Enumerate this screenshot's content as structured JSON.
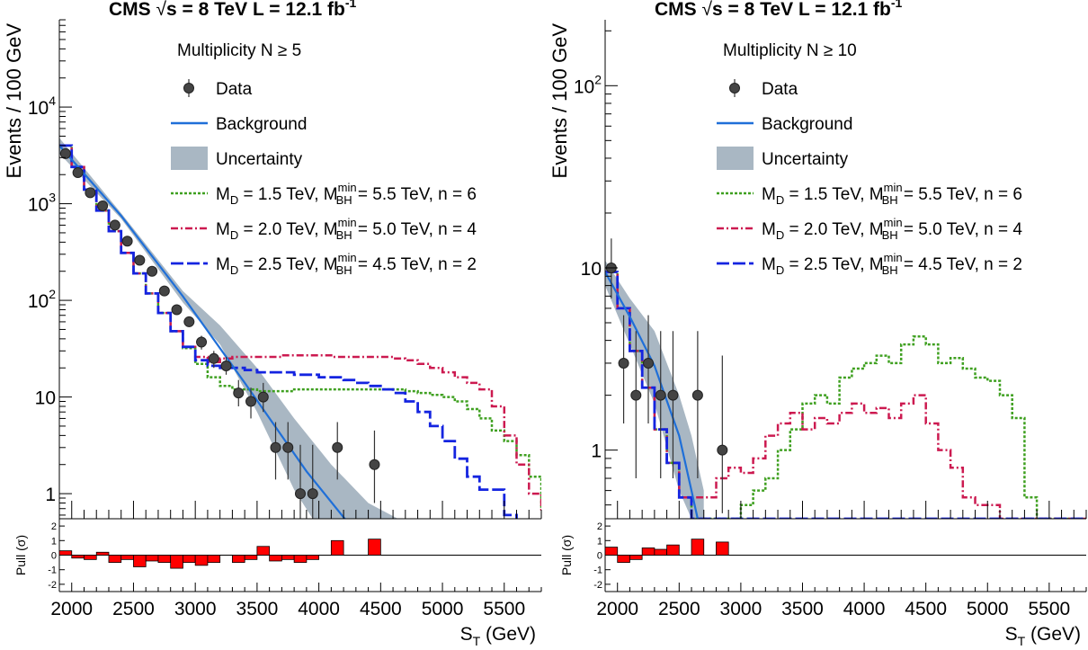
{
  "chart_data": [
    {
      "type": "line",
      "title": {
        "cms": "CMS",
        "energy": "s = 8 TeV",
        "sqrt": "√",
        "lumi_prefix": "L = 12.1 fb",
        "lumi_exp": "-1"
      },
      "multiplicity": "Multiplicity N ≥ 5",
      "xlabel": {
        "main": "S",
        "sub": "T",
        "unit": " (GeV)"
      },
      "ylabel": "Events / 100 GeV",
      "pull_label": "Pull (σ)",
      "log_y": true,
      "xlim": [
        1900,
        5800
      ],
      "ylim": [
        0.55,
        80000
      ],
      "pull_ylim": [
        -2.5,
        2.5
      ],
      "x_ticks": [
        "2000",
        "2500",
        "3000",
        "3500",
        "4000",
        "4500",
        "5000",
        "5500"
      ],
      "y_ticks": [
        {
          "v": 1,
          "base": "1",
          "exp": ""
        },
        {
          "v": 10,
          "base": "10",
          "exp": ""
        },
        {
          "v": 100,
          "base": "10",
          "exp": "2"
        },
        {
          "v": 1000,
          "base": "10",
          "exp": "3"
        },
        {
          "v": 10000,
          "base": "10",
          "exp": "4"
        }
      ],
      "pull_ticks": [
        "-2",
        "-1",
        "0",
        "1",
        "2"
      ],
      "legend": [
        {
          "kind": "data",
          "label": "Data"
        },
        {
          "kind": "bkg",
          "label": "Background"
        },
        {
          "kind": "unc",
          "label": "Uncertainty"
        },
        {
          "kind": "s1",
          "label": "M_D = 1.5 TeV, M_BH^min = 5.5 TeV, n = 6",
          "parts": {
            "m": "M",
            "d": "D",
            "a": " = 1.5 TeV, ",
            "bh": "BH",
            "min": "min",
            "b": " = 5.5 TeV, n = 6"
          }
        },
        {
          "kind": "s2",
          "label": "M_D = 2.0 TeV, M_BH^min = 5.0 TeV, n = 4",
          "parts": {
            "m": "M",
            "d": "D",
            "a": " = 2.0 TeV, ",
            "bh": "BH",
            "min": "min",
            "b": " = 5.0 TeV, n = 4"
          }
        },
        {
          "kind": "s3",
          "label": "M_D = 2.5 TeV, M_BH^min = 4.5 TeV, n = 2",
          "parts": {
            "m": "M",
            "d": "D",
            "a": " = 2.5 TeV, ",
            "bh": "BH",
            "min": "min",
            "b": " = 4.5 TeV, n = 2"
          }
        }
      ],
      "colors": {
        "background": "#1f6fd8",
        "uncertainty": "#a9b7c3",
        "s1": "#3fa020",
        "s2": "#cc1a50",
        "s3": "#1424e0",
        "pull": "#ff0000",
        "data": "#222222"
      },
      "background_fit": [
        [
          1900,
          4000
        ],
        [
          2400,
          750
        ],
        [
          2900,
          110
        ],
        [
          3400,
          14
        ],
        [
          3900,
          1.7
        ],
        [
          4400,
          0.25
        ]
      ],
      "uncertainty_band": [
        [
          1900,
          3300,
          4800
        ],
        [
          2400,
          700,
          800
        ],
        [
          2900,
          95,
          125
        ],
        [
          3200,
          35,
          55
        ],
        [
          3500,
          7,
          20
        ],
        [
          3800,
          1.1,
          6
        ],
        [
          4100,
          0.2,
          2
        ],
        [
          4400,
          0.1,
          0.8
        ],
        [
          4700,
          0.05,
          0.5
        ]
      ],
      "data_points": [
        {
          "x": 1950,
          "y": 3300,
          "lo": 3150,
          "hi": 3450
        },
        {
          "x": 2050,
          "y": 2100,
          "lo": 2000,
          "hi": 2200
        },
        {
          "x": 2150,
          "y": 1300,
          "lo": 1230,
          "hi": 1370
        },
        {
          "x": 2250,
          "y": 950,
          "lo": 890,
          "hi": 1010
        },
        {
          "x": 2350,
          "y": 600,
          "lo": 560,
          "hi": 640
        },
        {
          "x": 2450,
          "y": 410,
          "lo": 380,
          "hi": 440
        },
        {
          "x": 2550,
          "y": 260,
          "lo": 240,
          "hi": 280
        },
        {
          "x": 2650,
          "y": 200,
          "lo": 185,
          "hi": 215
        },
        {
          "x": 2750,
          "y": 125,
          "lo": 114,
          "hi": 136
        },
        {
          "x": 2850,
          "y": 80,
          "lo": 72,
          "hi": 89
        },
        {
          "x": 2950,
          "y": 60,
          "lo": 53,
          "hi": 68
        },
        {
          "x": 3050,
          "y": 37,
          "lo": 31,
          "hi": 43
        },
        {
          "x": 3150,
          "y": 25,
          "lo": 20,
          "hi": 30
        },
        {
          "x": 3250,
          "y": 21,
          "lo": 17,
          "hi": 26
        },
        {
          "x": 3350,
          "y": 11,
          "lo": 8,
          "hi": 15
        },
        {
          "x": 3450,
          "y": 9,
          "lo": 6,
          "hi": 12.5
        },
        {
          "x": 3550,
          "y": 10,
          "lo": 7,
          "hi": 14
        },
        {
          "x": 3650,
          "y": 3,
          "lo": 1.4,
          "hi": 5.5
        },
        {
          "x": 3750,
          "y": 3,
          "lo": 1.4,
          "hi": 5.5
        },
        {
          "x": 3850,
          "y": 1,
          "lo": 0.55,
          "hi": 3.2
        },
        {
          "x": 3950,
          "y": 1,
          "lo": 0.55,
          "hi": 3.2
        },
        {
          "x": 4150,
          "y": 3,
          "lo": 1.4,
          "hi": 5.5
        },
        {
          "x": 4450,
          "y": 2,
          "lo": 0.8,
          "hi": 4.5
        }
      ],
      "signals": [
        {
          "key": "s1",
          "dash": "3 2",
          "width": 2.5,
          "x0": 1900,
          "step": 100,
          "y": [
            4000,
            2400,
            1400,
            850,
            520,
            310,
            190,
            118,
            74,
            48,
            32,
            22,
            16,
            13,
            12,
            12,
            11.5,
            11.5,
            11.5,
            12,
            12,
            12,
            12,
            12,
            12,
            12,
            12,
            12,
            11.5,
            11,
            10.5,
            10,
            9,
            7.5,
            6,
            4.5,
            3.5,
            2.5,
            1.5,
            0.7,
            0.5
          ]
        },
        {
          "key": "s2",
          "dash": "8 3 2 3",
          "width": 2.5,
          "x0": 1900,
          "step": 100,
          "y": [
            4000,
            2400,
            1400,
            850,
            520,
            310,
            190,
            118,
            74,
            48,
            33,
            26,
            23,
            25,
            26,
            26,
            26,
            26,
            27,
            27,
            27,
            27,
            26,
            26,
            26,
            26,
            26,
            25,
            24,
            22,
            20,
            18,
            16,
            14,
            12,
            8,
            4,
            2,
            1,
            0.65,
            0.5
          ]
        },
        {
          "key": "s3",
          "dash": "14 4",
          "width": 2.8,
          "x0": 1900,
          "step": 100,
          "y": [
            4000,
            2400,
            1400,
            850,
            520,
            310,
            190,
            118,
            74,
            48,
            33,
            24,
            21,
            20,
            20,
            19,
            18,
            18,
            18,
            17,
            17,
            16,
            16,
            15,
            14,
            13,
            12,
            11,
            9,
            7,
            5,
            3.5,
            2.3,
            1.5,
            1.1,
            1.1,
            0.6,
            0.5,
            0.5,
            0.5,
            0.5
          ]
        }
      ],
      "pull": [
        {
          "x0": 1900,
          "x1": 2000,
          "v": 0.3
        },
        {
          "x0": 2000,
          "x1": 2100,
          "v": -0.2
        },
        {
          "x0": 2100,
          "x1": 2200,
          "v": -0.3
        },
        {
          "x0": 2200,
          "x1": 2300,
          "v": 0.2
        },
        {
          "x0": 2300,
          "x1": 2400,
          "v": -0.5
        },
        {
          "x0": 2400,
          "x1": 2500,
          "v": -0.3
        },
        {
          "x0": 2500,
          "x1": 2600,
          "v": -0.8
        },
        {
          "x0": 2600,
          "x1": 2700,
          "v": -0.4
        },
        {
          "x0": 2700,
          "x1": 2800,
          "v": -0.5
        },
        {
          "x0": 2800,
          "x1": 2900,
          "v": -0.9
        },
        {
          "x0": 2900,
          "x1": 3000,
          "v": -0.5
        },
        {
          "x0": 3000,
          "x1": 3100,
          "v": -0.7
        },
        {
          "x0": 3100,
          "x1": 3200,
          "v": -0.5
        },
        {
          "x0": 3300,
          "x1": 3400,
          "v": -0.5
        },
        {
          "x0": 3400,
          "x1": 3500,
          "v": -0.3
        },
        {
          "x0": 3500,
          "x1": 3600,
          "v": 0.6
        },
        {
          "x0": 3600,
          "x1": 3700,
          "v": -0.4
        },
        {
          "x0": 3700,
          "x1": 3800,
          "v": -0.3
        },
        {
          "x0": 3800,
          "x1": 3900,
          "v": -0.5
        },
        {
          "x0": 3900,
          "x1": 4000,
          "v": -0.3
        },
        {
          "x0": 4100,
          "x1": 4200,
          "v": 1.0
        },
        {
          "x0": 4400,
          "x1": 4500,
          "v": 1.1
        }
      ]
    },
    {
      "type": "line",
      "title": {
        "cms": "CMS",
        "energy": "s = 8 TeV",
        "sqrt": "√",
        "lumi_prefix": "L = 12.1 fb",
        "lumi_exp": "-1"
      },
      "multiplicity": "Multiplicity N ≥ 10",
      "xlabel": {
        "main": "S",
        "sub": "T",
        "unit": " (GeV)"
      },
      "ylabel": "Events / 100 GeV",
      "pull_label": "Pull (σ)",
      "log_y": true,
      "xlim": [
        1900,
        5800
      ],
      "ylim": [
        0.42,
        230
      ],
      "pull_ylim": [
        -2.5,
        2.5
      ],
      "x_ticks": [
        "2000",
        "2500",
        "3000",
        "3500",
        "4000",
        "4500",
        "5000",
        "5500"
      ],
      "y_ticks": [
        {
          "v": 1,
          "base": "1",
          "exp": ""
        },
        {
          "v": 10,
          "base": "10",
          "exp": ""
        },
        {
          "v": 100,
          "base": "10",
          "exp": "2"
        }
      ],
      "pull_ticks": [
        "-2",
        "-1",
        "0",
        "1",
        "2"
      ],
      "legend": [
        {
          "kind": "data",
          "label": "Data"
        },
        {
          "kind": "bkg",
          "label": "Background"
        },
        {
          "kind": "unc",
          "label": "Uncertainty"
        },
        {
          "kind": "s1",
          "label": "M_D = 1.5 TeV, M_BH^min = 5.5 TeV, n = 6",
          "parts": {
            "m": "M",
            "d": "D",
            "a": " = 1.5 TeV, ",
            "bh": "BH",
            "min": "min",
            "b": " = 5.5 TeV, n = 6"
          }
        },
        {
          "kind": "s2",
          "label": "M_D = 2.0 TeV, M_BH^min = 5.0 TeV, n = 4",
          "parts": {
            "m": "M",
            "d": "D",
            "a": " = 2.0 TeV, ",
            "bh": "BH",
            "min": "min",
            "b": " = 5.0 TeV, n = 4"
          }
        },
        {
          "kind": "s3",
          "label": "M_D = 2.5 TeV, M_BH^min = 4.5 TeV, n = 2",
          "parts": {
            "m": "M",
            "d": "D",
            "a": " = 2.5 TeV, ",
            "bh": "BH",
            "min": "min",
            "b": " = 4.5 TeV, n = 2"
          }
        }
      ],
      "colors": {
        "background": "#1f6fd8",
        "uncertainty": "#a9b7c3",
        "s1": "#3fa020",
        "s2": "#cc1a50",
        "s3": "#1424e0",
        "pull": "#ff0000",
        "data": "#222222"
      },
      "background_fit": [
        [
          1900,
          9.5
        ],
        [
          2100,
          5.4
        ],
        [
          2300,
          2.9
        ],
        [
          2500,
          1.2
        ],
        [
          2600,
          0.6
        ],
        [
          2650,
          0.42
        ]
      ],
      "uncertainty_band": [
        [
          1900,
          8,
          11
        ],
        [
          2100,
          3.8,
          6.8
        ],
        [
          2300,
          1.8,
          4.5
        ],
        [
          2500,
          0.6,
          2.0
        ],
        [
          2600,
          0.42,
          1.2
        ],
        [
          2700,
          0.42,
          0.6
        ]
      ],
      "data_points": [
        {
          "x": 1950,
          "y": 10,
          "lo": 6.8,
          "hi": 14.5
        },
        {
          "x": 2050,
          "y": 3,
          "lo": 1.4,
          "hi": 5.5
        },
        {
          "x": 2150,
          "y": 2,
          "lo": 0.7,
          "hi": 4.5
        },
        {
          "x": 2250,
          "y": 3,
          "lo": 1.4,
          "hi": 5.5
        },
        {
          "x": 2350,
          "y": 2,
          "lo": 0.7,
          "hi": 4.5
        },
        {
          "x": 2450,
          "y": 2,
          "lo": 0.7,
          "hi": 4.5
        },
        {
          "x": 2650,
          "y": 2,
          "lo": 0.7,
          "hi": 4.5
        },
        {
          "x": 2850,
          "y": 1,
          "lo": 0.45,
          "hi": 3.3
        }
      ],
      "signals": [
        {
          "key": "s1",
          "dash": "3 2",
          "width": 2.5,
          "x0": 1900,
          "step": 100,
          "y": [
            9.5,
            6,
            3.5,
            2.2,
            1.3,
            0.85,
            0.55,
            0.42,
            0.42,
            0.42,
            0.42,
            0.5,
            0.6,
            0.7,
            1.0,
            1.3,
            1.8,
            2.0,
            1.8,
            2.5,
            2.8,
            3.0,
            3.3,
            3.0,
            3.8,
            4.2,
            3.8,
            3.0,
            3.2,
            2.8,
            2.5,
            2.4,
            2.0,
            1.5,
            0.55,
            0.42,
            0.42,
            0.42,
            0.42
          ]
        },
        {
          "key": "s2",
          "dash": "8 3 2 3",
          "width": 2.5,
          "x0": 1900,
          "step": 100,
          "y": [
            9.5,
            6,
            3.5,
            2.2,
            1.3,
            0.85,
            0.55,
            0.55,
            0.55,
            0.7,
            0.8,
            0.75,
            0.9,
            1.2,
            1.4,
            1.6,
            1.3,
            1.5,
            1.4,
            1.6,
            1.8,
            1.6,
            1.7,
            1.5,
            1.8,
            2.0,
            1.4,
            1.0,
            0.8,
            0.55,
            0.5,
            0.5,
            0.42,
            0.42,
            0.42,
            0.42,
            0.42,
            0.42,
            0.42
          ]
        },
        {
          "key": "s3",
          "dash": "14 4",
          "width": 2.8,
          "x0": 1900,
          "step": 100,
          "y": [
            9.5,
            6,
            3.5,
            2.2,
            1.3,
            0.85,
            0.55,
            0.42,
            0.42,
            0.42,
            0.42,
            0.42,
            0.42,
            0.42,
            0.42,
            0.42,
            0.42,
            0.42,
            0.42,
            0.42,
            0.42,
            0.42,
            0.42,
            0.42,
            0.42,
            0.42,
            0.42,
            0.42,
            0.42,
            0.42,
            0.42,
            0.42,
            0.42,
            0.42,
            0.42,
            0.42,
            0.42,
            0.42,
            0.42
          ]
        }
      ],
      "pull": [
        {
          "x0": 1900,
          "x1": 2000,
          "v": 0.55
        },
        {
          "x0": 2000,
          "x1": 2100,
          "v": -0.5
        },
        {
          "x0": 2100,
          "x1": 2200,
          "v": -0.3
        },
        {
          "x0": 2200,
          "x1": 2300,
          "v": 0.5
        },
        {
          "x0": 2300,
          "x1": 2400,
          "v": 0.4
        },
        {
          "x0": 2400,
          "x1": 2500,
          "v": 0.7
        },
        {
          "x0": 2600,
          "x1": 2700,
          "v": 1.1
        },
        {
          "x0": 2800,
          "x1": 2900,
          "v": 0.9
        }
      ]
    }
  ]
}
